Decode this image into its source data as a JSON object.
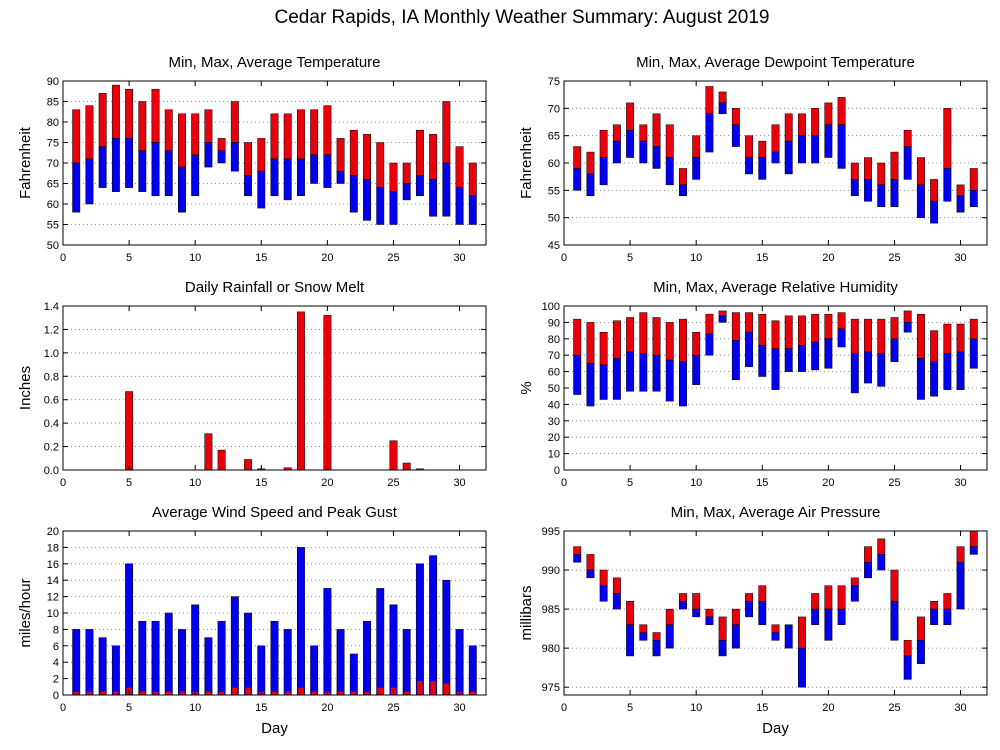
{
  "page": {
    "title": "Cedar Rapids, IA Monthly Weather Summary: August 2019"
  },
  "colors": {
    "upper": "#e8000b",
    "lower": "#0000ee",
    "outline": "#000000",
    "grid": "#888888"
  },
  "chart_data": [
    {
      "id": "temp",
      "type": "bar",
      "style": "stacked-range",
      "title": "Min, Max, Average Temperature",
      "xlabel": "",
      "ylabel": "Fahrenheit",
      "xlim": [
        0,
        32
      ],
      "xticks": [
        0,
        5,
        10,
        15,
        20,
        25,
        30
      ],
      "ylim": [
        50,
        90
      ],
      "yticks": [
        50,
        55,
        60,
        65,
        70,
        75,
        80,
        85,
        90
      ],
      "x": [
        1,
        2,
        3,
        4,
        5,
        6,
        7,
        8,
        9,
        10,
        11,
        12,
        13,
        14,
        15,
        16,
        17,
        18,
        19,
        20,
        21,
        22,
        23,
        24,
        25,
        26,
        27,
        28,
        29,
        30,
        31
      ],
      "min": [
        58,
        60,
        64,
        63,
        64,
        63,
        62,
        62,
        58,
        62,
        69,
        70,
        68,
        62,
        59,
        62,
        61,
        62,
        65,
        64,
        65,
        58,
        56,
        55,
        55,
        61,
        62,
        57,
        57,
        55,
        55
      ],
      "avg": [
        70,
        71,
        74,
        76,
        76,
        73,
        75,
        73,
        69,
        72,
        75,
        73,
        75,
        67,
        68,
        71,
        71,
        71,
        72,
        72,
        68,
        67,
        66,
        64,
        63,
        65,
        67,
        66,
        70,
        64,
        62
      ],
      "max": [
        83,
        84,
        87,
        89,
        88,
        85,
        88,
        83,
        82,
        82,
        83,
        76,
        85,
        75,
        76,
        82,
        82,
        83,
        83,
        84,
        76,
        78,
        77,
        75,
        70,
        70,
        78,
        77,
        85,
        74,
        70
      ]
    },
    {
      "id": "dew",
      "type": "bar",
      "style": "stacked-range",
      "title": "Min, Max, Average Dewpoint Temperature",
      "xlabel": "",
      "ylabel": "Fahrenheit",
      "xlim": [
        0,
        32
      ],
      "xticks": [
        0,
        5,
        10,
        15,
        20,
        25,
        30
      ],
      "ylim": [
        45,
        75
      ],
      "yticks": [
        45,
        50,
        55,
        60,
        65,
        70,
        75
      ],
      "x": [
        1,
        2,
        3,
        4,
        5,
        6,
        7,
        8,
        9,
        10,
        11,
        12,
        13,
        14,
        15,
        16,
        17,
        18,
        19,
        20,
        21,
        22,
        23,
        24,
        25,
        26,
        27,
        28,
        29,
        30,
        31
      ],
      "min": [
        55,
        54,
        56,
        60,
        61,
        60,
        59,
        56,
        54,
        57,
        62,
        69,
        63,
        58,
        57,
        60,
        58,
        60,
        60,
        61,
        59,
        54,
        53,
        52,
        52,
        57,
        50,
        49,
        53,
        51,
        52
      ],
      "avg": [
        59,
        58,
        61,
        64,
        66,
        64,
        63,
        61,
        56,
        61,
        69,
        71,
        67,
        61,
        61,
        62,
        64,
        65,
        65,
        67,
        67,
        57,
        57,
        56,
        57,
        63,
        56,
        53,
        59,
        54,
        55
      ],
      "max": [
        63,
        62,
        66,
        67,
        71,
        67,
        69,
        67,
        59,
        65,
        74,
        73,
        70,
        65,
        64,
        67,
        69,
        69,
        70,
        71,
        72,
        60,
        61,
        60,
        62,
        66,
        61,
        57,
        70,
        56,
        59
      ]
    },
    {
      "id": "rain",
      "type": "bar",
      "title": "Daily Rainfall or Snow Melt",
      "xlabel": "",
      "ylabel": "Inches",
      "xlim": [
        0,
        32
      ],
      "xticks": [
        0,
        5,
        10,
        15,
        20,
        25,
        30
      ],
      "ylim": [
        0,
        1.4
      ],
      "yticks": [
        0,
        0.2,
        0.4,
        0.6,
        0.8,
        1.0,
        1.2,
        1.4
      ],
      "tick_labels": [
        "0.0",
        "0.2",
        "0.4",
        "0.6",
        "0.8",
        "1.0",
        "1.2",
        "1.4"
      ],
      "x": [
        1,
        2,
        3,
        4,
        5,
        6,
        7,
        8,
        9,
        10,
        11,
        12,
        13,
        14,
        15,
        16,
        17,
        18,
        19,
        20,
        21,
        22,
        23,
        24,
        25,
        26,
        27,
        28,
        29,
        30,
        31
      ],
      "values": [
        0,
        0,
        0,
        0,
        0.67,
        0,
        0,
        0,
        0,
        0,
        0.31,
        0.17,
        0,
        0.09,
        0.01,
        0,
        0.02,
        1.35,
        0,
        1.32,
        0,
        0,
        0,
        0,
        0.25,
        0.06,
        0.01,
        0,
        0,
        0,
        0
      ]
    },
    {
      "id": "rh",
      "type": "bar",
      "style": "stacked-range",
      "title": "Min, Max, Average Relative Humidity",
      "xlabel": "",
      "ylabel": "%",
      "xlim": [
        0,
        32
      ],
      "xticks": [
        0,
        5,
        10,
        15,
        20,
        25,
        30
      ],
      "ylim": [
        0,
        100
      ],
      "yticks": [
        0,
        10,
        20,
        30,
        40,
        50,
        60,
        70,
        80,
        90,
        100
      ],
      "x": [
        1,
        2,
        3,
        4,
        5,
        6,
        7,
        8,
        9,
        10,
        11,
        12,
        13,
        14,
        15,
        16,
        17,
        18,
        19,
        20,
        21,
        22,
        23,
        24,
        25,
        26,
        27,
        28,
        29,
        30,
        31
      ],
      "min": [
        46,
        39,
        43,
        43,
        48,
        48,
        48,
        42,
        39,
        52,
        70,
        90,
        55,
        63,
        57,
        49,
        60,
        60,
        61,
        62,
        75,
        47,
        53,
        51,
        66,
        84,
        43,
        45,
        49,
        49,
        62
      ],
      "avg": [
        70,
        65,
        64,
        68,
        72,
        71,
        70,
        67,
        66,
        70,
        83,
        94,
        79,
        84,
        76,
        74,
        74,
        76,
        78,
        80,
        86,
        71,
        72,
        71,
        80,
        90,
        68,
        66,
        71,
        72,
        80
      ],
      "max": [
        92,
        90,
        84,
        91,
        93,
        96,
        93,
        90,
        92,
        84,
        95,
        97,
        96,
        96,
        95,
        91,
        94,
        94,
        95,
        95,
        96,
        92,
        92,
        92,
        93,
        97,
        95,
        85,
        89,
        89,
        92
      ]
    },
    {
      "id": "wind",
      "type": "bar",
      "style": "overlay",
      "title": "Average Wind Speed and Peak Gust",
      "xlabel": "Day",
      "ylabel": "miles/hour",
      "xlim": [
        0,
        32
      ],
      "xticks": [
        0,
        5,
        10,
        15,
        20,
        25,
        30
      ],
      "ylim": [
        0,
        20
      ],
      "yticks": [
        0,
        2,
        4,
        6,
        8,
        10,
        12,
        14,
        16,
        18,
        20
      ],
      "x": [
        1,
        2,
        3,
        4,
        5,
        6,
        7,
        8,
        9,
        10,
        11,
        12,
        13,
        14,
        15,
        16,
        17,
        18,
        19,
        20,
        21,
        22,
        23,
        24,
        25,
        26,
        27,
        28,
        29,
        30,
        31
      ],
      "gust": [
        8,
        8,
        7,
        6,
        16,
        9,
        9,
        10,
        8,
        11,
        7,
        9,
        12,
        10,
        6,
        9,
        8,
        18,
        6,
        13,
        8,
        5,
        9,
        13,
        11,
        8,
        16,
        17,
        14,
        8,
        6
      ],
      "avg_speed": [
        0.4,
        0.4,
        0.4,
        0.4,
        0.9,
        0.4,
        0.4,
        0.4,
        0.4,
        0.4,
        0.4,
        0.4,
        0.9,
        0.9,
        0.4,
        0.4,
        0.4,
        0.9,
        0.4,
        0.4,
        0.4,
        0.4,
        0.4,
        0.9,
        0.9,
        0.4,
        1.7,
        1.7,
        1.4,
        0.4,
        0.4
      ]
    },
    {
      "id": "press",
      "type": "bar",
      "style": "stacked-range",
      "title": "Min, Max, Average Air Pressure",
      "xlabel": "Day",
      "ylabel": "millibars",
      "xlim": [
        0,
        32
      ],
      "xticks": [
        0,
        5,
        10,
        15,
        20,
        25,
        30
      ],
      "ylim": [
        974,
        995
      ],
      "yticks": [
        975,
        980,
        985,
        990,
        995
      ],
      "x": [
        1,
        2,
        3,
        4,
        5,
        6,
        7,
        8,
        9,
        10,
        11,
        12,
        13,
        14,
        15,
        16,
        17,
        18,
        19,
        20,
        21,
        22,
        23,
        24,
        25,
        26,
        27,
        28,
        29,
        30,
        31
      ],
      "min": [
        991,
        989,
        986,
        985,
        979,
        981,
        979,
        980,
        985,
        984,
        983,
        979,
        980,
        984,
        983,
        981,
        980,
        975,
        983,
        981,
        983,
        986,
        989,
        990,
        981,
        976,
        978,
        983,
        983,
        985,
        992
      ],
      "avg": [
        992,
        990,
        988,
        987,
        983,
        982,
        981,
        983,
        986,
        985,
        984,
        981,
        983,
        986,
        986,
        982,
        983,
        980,
        985,
        985,
        985,
        988,
        991,
        992,
        986,
        979,
        981,
        985,
        985,
        991,
        993
      ],
      "max": [
        993,
        992,
        990,
        989,
        986,
        983,
        982,
        985,
        987,
        987,
        985,
        984,
        985,
        987,
        988,
        983,
        983,
        984,
        987,
        988,
        988,
        989,
        993,
        994,
        990,
        981,
        984,
        986,
        987,
        993,
        995
      ]
    }
  ]
}
